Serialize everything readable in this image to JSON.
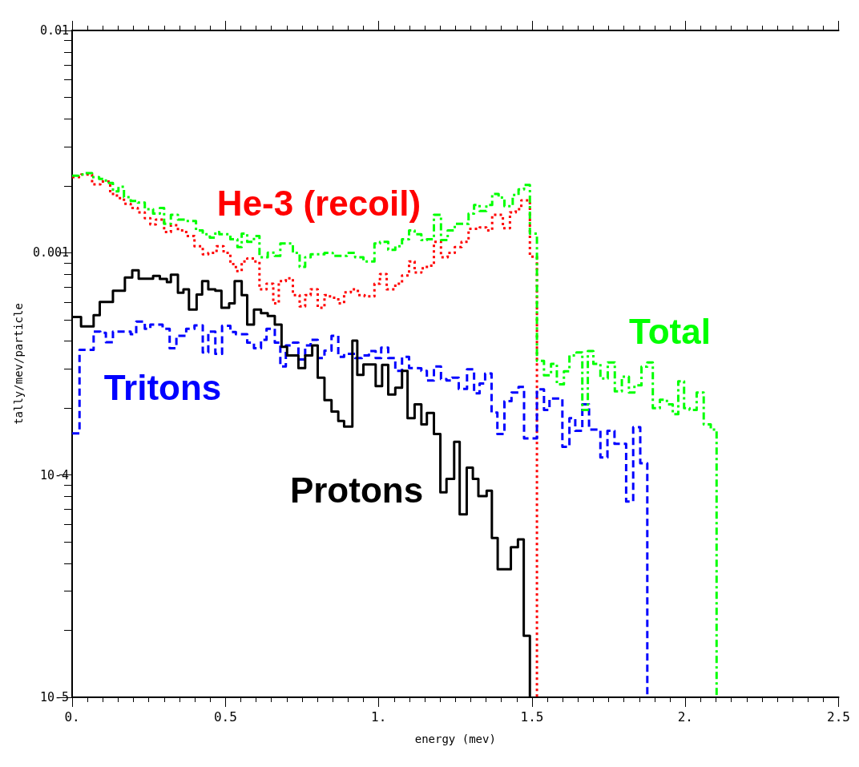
{
  "chart_data": {
    "type": "step",
    "xlabel": "energy (mev)",
    "ylabel": "tally/mev/particle",
    "log": "y",
    "xlim": [
      0,
      2.5
    ],
    "xticks": [
      {
        "value": 0,
        "label": "0."
      },
      {
        "value": 0.5,
        "label": "0.5"
      },
      {
        "value": 1,
        "label": "1."
      },
      {
        "value": 1.5,
        "label": "1.5"
      },
      {
        "value": 2,
        "label": "2."
      },
      {
        "value": 2.5,
        "label": "2.5"
      }
    ],
    "ylim": [
      1e-05,
      0.01
    ],
    "yticks": [
      {
        "value": 1e-05,
        "label": "10-5"
      },
      {
        "value": 0.0001,
        "label": "10-4"
      },
      {
        "value": 0.001,
        "label": "0.001"
      },
      {
        "value": 0.01,
        "label": "0.01"
      }
    ],
    "series": [
      {
        "name": "He-3 (recoil)",
        "color": "#ff0000",
        "line_style": "dotted",
        "x": [
          0,
          0.029,
          0.065,
          0.092,
          0.124,
          0.146,
          0.169,
          0.191,
          0.214,
          0.237,
          0.255,
          0.273,
          0.3,
          0.322,
          0.345,
          0.372,
          0.399,
          0.426,
          0.444,
          0.471,
          0.494,
          0.516,
          0.534,
          0.553,
          0.571,
          0.593,
          0.611,
          0.634,
          0.656,
          0.674,
          0.697,
          0.72,
          0.742,
          0.76,
          0.778,
          0.801,
          0.823,
          0.841,
          0.868,
          0.887,
          0.909,
          0.932,
          0.954,
          0.986,
          1.004,
          1.026,
          1.054,
          1.076,
          1.099,
          1.117,
          1.139,
          1.157,
          1.18,
          1.203,
          1.225,
          1.248,
          1.27,
          1.293,
          1.329,
          1.351,
          1.37,
          1.405,
          1.428,
          1.447,
          1.465,
          1.493,
          1.516
        ],
        "values": [
          0.00219,
          0.00225,
          0.00203,
          0.00209,
          0.00184,
          0.00176,
          0.00166,
          0.00159,
          0.00152,
          0.00143,
          0.00134,
          0.00141,
          0.00124,
          0.00133,
          0.00126,
          0.00119,
          0.00107,
          0.000984,
          0.000998,
          0.00107,
          0.000998,
          0.000889,
          0.000826,
          0.000914,
          0.000942,
          0.000914,
          0.000684,
          0.000725,
          0.000592,
          0.000746,
          0.000768,
          0.000645,
          0.000574,
          0.000645,
          0.000684,
          0.000566,
          0.000645,
          0.000627,
          0.000592,
          0.000664,
          0.000684,
          0.000645,
          0.000636,
          0.000725,
          0.000802,
          0.000684,
          0.000725,
          0.00079,
          0.000914,
          0.000814,
          0.000851,
          0.000875,
          0.00112,
          0.000955,
          0.000998,
          0.00106,
          0.00112,
          0.00128,
          0.0013,
          0.00126,
          0.00148,
          0.00129,
          0.00152,
          0.00157,
          0.00172,
          0.00096,
          1e-05
        ]
      },
      {
        "name": "Tritons",
        "color": "#0000ff",
        "line_style": "dashed",
        "x": [
          0,
          0.024,
          0.07,
          0.092,
          0.11,
          0.133,
          0.191,
          0.209,
          0.237,
          0.255,
          0.295,
          0.318,
          0.34,
          0.372,
          0.399,
          0.426,
          0.444,
          0.467,
          0.489,
          0.516,
          0.534,
          0.571,
          0.593,
          0.616,
          0.634,
          0.661,
          0.679,
          0.697,
          0.72,
          0.738,
          0.76,
          0.778,
          0.801,
          0.823,
          0.846,
          0.868,
          0.887,
          0.923,
          0.945,
          0.968,
          0.99,
          1.008,
          1.031,
          1.054,
          1.076,
          1.099,
          1.117,
          1.139,
          1.157,
          1.18,
          1.203,
          1.221,
          1.239,
          1.261,
          1.288,
          1.311,
          1.329,
          1.347,
          1.368,
          1.387,
          1.41,
          1.433,
          1.456,
          1.474,
          1.516,
          1.539,
          1.557,
          1.599,
          1.622,
          1.641,
          1.664,
          1.686,
          1.723,
          1.746,
          1.769,
          1.807,
          1.83,
          1.853,
          1.876
        ],
        "values": [
          0.000154,
          0.000366,
          0.000442,
          0.000436,
          0.000396,
          0.000442,
          0.00043,
          0.00049,
          0.000455,
          0.000475,
          0.000455,
          0.000372,
          0.000423,
          0.000455,
          0.000471,
          0.000356,
          0.000442,
          0.000351,
          0.000469,
          0.00044,
          0.00043,
          0.000394,
          0.000372,
          0.000406,
          0.000455,
          0.000394,
          0.000308,
          0.000383,
          0.000394,
          0.000331,
          0.000383,
          0.000406,
          0.000336,
          0.000363,
          0.000423,
          0.00034,
          0.000351,
          0.000336,
          0.000345,
          0.000361,
          0.000336,
          0.000374,
          0.000336,
          0.000294,
          0.00034,
          0.000303,
          0.000302,
          0.000294,
          0.000266,
          0.000308,
          0.00027,
          0.000266,
          0.000274,
          0.000244,
          0.000299,
          0.000233,
          0.000258,
          0.000286,
          0.000191,
          0.000153,
          0.000215,
          0.000235,
          0.000249,
          0.000146,
          0.000243,
          0.000196,
          0.000221,
          0.000134,
          0.00018,
          0.000158,
          0.000208,
          0.00016,
          0.00012,
          0.000158,
          0.000138,
          7.6e-05,
          0.000164,
          0.000113,
          1e-05
        ]
      },
      {
        "name": "Protons",
        "color": "#000000",
        "line_style": "solid",
        "x": [
          0,
          0.029,
          0.07,
          0.09,
          0.133,
          0.172,
          0.196,
          0.217,
          0.264,
          0.286,
          0.309,
          0.322,
          0.345,
          0.363,
          0.381,
          0.406,
          0.424,
          0.444,
          0.467,
          0.487,
          0.512,
          0.53,
          0.553,
          0.571,
          0.593,
          0.616,
          0.638,
          0.661,
          0.683,
          0.701,
          0.738,
          0.76,
          0.783,
          0.801,
          0.823,
          0.846,
          0.868,
          0.887,
          0.914,
          0.93,
          0.95,
          0.99,
          1.011,
          1.031,
          1.054,
          1.076,
          1.094,
          1.117,
          1.139,
          1.157,
          1.18,
          1.201,
          1.221,
          1.246,
          1.264,
          1.287,
          1.307,
          1.325,
          1.352,
          1.369,
          1.388,
          1.431,
          1.454,
          1.473,
          1.493
        ],
        "values": [
          0.000514,
          0.000466,
          0.000524,
          0.0006,
          0.000674,
          0.000773,
          0.000834,
          0.000764,
          0.000787,
          0.000762,
          0.000738,
          0.000796,
          0.000661,
          0.000684,
          0.000555,
          0.000649,
          0.000746,
          0.000684,
          0.000674,
          0.000566,
          0.000592,
          0.000746,
          0.000645,
          0.000475,
          0.000555,
          0.000535,
          0.000519,
          0.000475,
          0.000377,
          0.000345,
          0.000303,
          0.000345,
          0.000383,
          0.000274,
          0.000217,
          0.000193,
          0.000175,
          0.000165,
          0.000402,
          0.000282,
          0.000314,
          0.000251,
          0.000313,
          0.00023,
          0.000247,
          0.000294,
          0.00018,
          0.000208,
          0.000169,
          0.00019,
          0.000153,
          8.36e-05,
          9.6e-05,
          0.000141,
          6.65e-05,
          0.000108,
          9.6e-05,
          8.03e-05,
          8.5e-05,
          5.21e-05,
          3.77e-05,
          4.73e-05,
          5.13e-05,
          1.89e-05,
          1e-05
        ]
      },
      {
        "name": "Total",
        "color": "#00ff00",
        "line_style": "dashdot",
        "x": [
          0,
          0.02,
          0.042,
          0.065,
          0.088,
          0.11,
          0.133,
          0.151,
          0.169,
          0.191,
          0.214,
          0.237,
          0.264,
          0.286,
          0.3,
          0.322,
          0.345,
          0.372,
          0.404,
          0.426,
          0.449,
          0.467,
          0.48,
          0.516,
          0.539,
          0.553,
          0.571,
          0.593,
          0.611,
          0.638,
          0.661,
          0.679,
          0.72,
          0.742,
          0.76,
          0.778,
          0.823,
          0.85,
          0.896,
          0.923,
          0.95,
          0.986,
          1.004,
          1.031,
          1.054,
          1.076,
          1.099,
          1.117,
          1.139,
          1.157,
          1.18,
          1.203,
          1.225,
          1.248,
          1.293,
          1.311,
          1.329,
          1.351,
          1.37,
          1.391,
          1.41,
          1.437,
          1.456,
          1.474,
          1.493,
          1.516,
          1.539,
          1.562,
          1.581,
          1.604,
          1.622,
          1.645,
          1.664,
          1.682,
          1.7,
          1.723,
          1.747,
          1.77,
          1.793,
          1.816,
          1.834,
          1.857,
          1.876,
          1.894,
          1.917,
          1.94,
          1.959,
          1.977,
          1.996,
          2.014,
          2.037,
          2.06,
          2.083,
          2.102
        ],
        "values": [
          0.00222,
          0.00225,
          0.00228,
          0.00219,
          0.00215,
          0.00206,
          0.00189,
          0.00198,
          0.00178,
          0.00171,
          0.00168,
          0.00157,
          0.0015,
          0.00159,
          0.00135,
          0.00148,
          0.00141,
          0.00139,
          0.00126,
          0.00121,
          0.00117,
          0.00124,
          0.00121,
          0.00115,
          0.00106,
          0.00122,
          0.00112,
          0.00119,
          0.000955,
          0.001,
          0.000969,
          0.0011,
          0.000998,
          0.000863,
          0.000955,
          0.000984,
          0.000998,
          0.000969,
          0.000998,
          0.000955,
          0.000914,
          0.0011,
          0.00112,
          0.00103,
          0.00107,
          0.00115,
          0.00126,
          0.00121,
          0.00114,
          0.00115,
          0.00148,
          0.00114,
          0.00126,
          0.00135,
          0.0015,
          0.00164,
          0.00154,
          0.00164,
          0.00184,
          0.00177,
          0.00162,
          0.00182,
          0.00193,
          0.00202,
          0.00122,
          0.000326,
          0.000281,
          0.000316,
          0.000256,
          0.000293,
          0.000345,
          0.000356,
          0.000196,
          0.000361,
          0.000316,
          0.000272,
          0.000321,
          0.000238,
          0.000277,
          0.000235,
          0.000253,
          0.000307,
          0.000321,
          0.0002,
          0.000218,
          0.000208,
          0.000188,
          0.000264,
          0.0002,
          0.000196,
          0.000235,
          0.000169,
          0.00016,
          1e-05
        ]
      }
    ]
  }
}
